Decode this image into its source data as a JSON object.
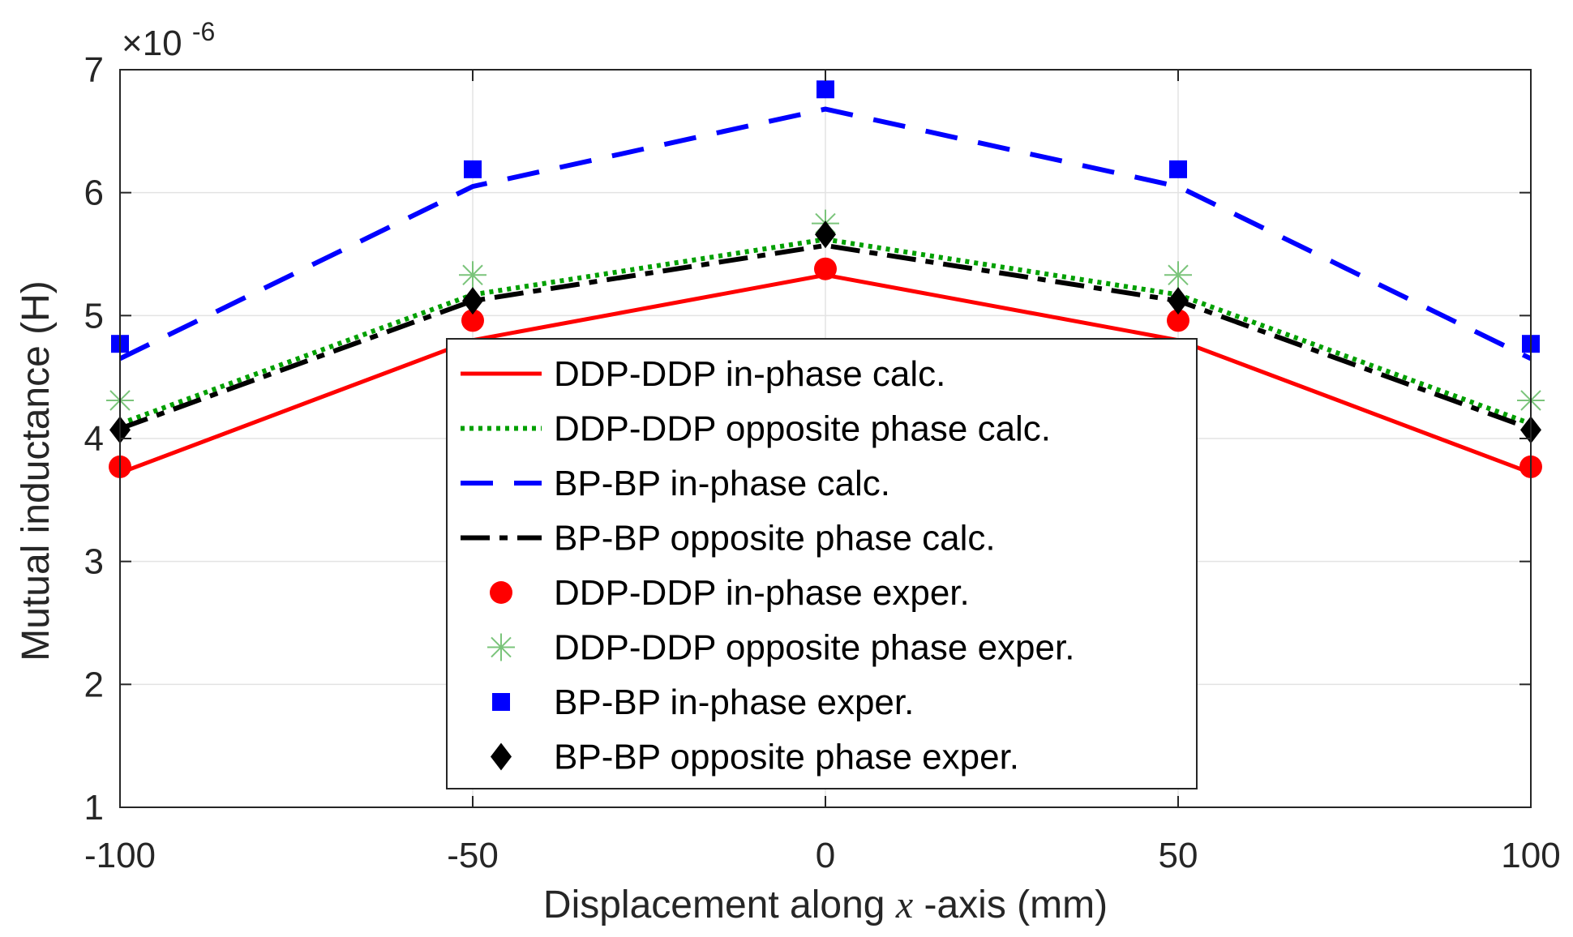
{
  "chart_data": {
    "type": "line",
    "title": "",
    "xlabel": "Displacement along x-axis (mm)",
    "xlabel_parts": {
      "before": "Displacement along ",
      "italic": "x",
      "after": "-axis (mm)"
    },
    "ylabel": "Mutual inductance (H)",
    "y_exponent_label": "×10-6",
    "y_exponent": {
      "base": "×10",
      "power": "-6"
    },
    "x": [
      -100,
      -50,
      0,
      50,
      100
    ],
    "xlim": [
      -100,
      100
    ],
    "ylim": [
      1,
      7
    ],
    "xticks": [
      -100,
      -50,
      0,
      50,
      100
    ],
    "yticks": [
      1,
      2,
      3,
      4,
      5,
      6,
      7
    ],
    "grid": true,
    "legend_position": "center",
    "series": [
      {
        "name": "DDP-DDP in-phase calc.",
        "kind": "line",
        "style": "solid",
        "color": "#ff0000",
        "values": [
          3.72,
          4.8,
          5.33,
          4.8,
          3.72
        ]
      },
      {
        "name": "DDP-DDP opposite phase calc.",
        "kind": "line",
        "style": "dotted",
        "color": "#00a000",
        "values": [
          4.12,
          5.17,
          5.62,
          5.17,
          4.12
        ]
      },
      {
        "name": "BP-BP in-phase calc.",
        "kind": "line",
        "style": "dashed",
        "color": "#0000ff",
        "values": [
          4.65,
          6.05,
          6.68,
          6.05,
          4.65
        ]
      },
      {
        "name": "BP-BP opposite phase calc.",
        "kind": "line",
        "style": "dashdot",
        "color": "#000000",
        "values": [
          4.08,
          5.12,
          5.57,
          5.12,
          4.08
        ]
      },
      {
        "name": "DDP-DDP in-phase exper.",
        "kind": "marker",
        "marker": "circle",
        "color": "#ff0000",
        "values": [
          3.77,
          4.96,
          5.38,
          4.96,
          3.77
        ]
      },
      {
        "name": "DDP-DDP opposite phase exper.",
        "kind": "marker",
        "marker": "asterisk",
        "color": "#7ac47a",
        "values": [
          4.31,
          5.33,
          5.75,
          5.33,
          4.31
        ]
      },
      {
        "name": "BP-BP in-phase exper.",
        "kind": "marker",
        "marker": "square",
        "color": "#0000ff",
        "values": [
          4.77,
          6.19,
          6.84,
          6.19,
          4.77
        ]
      },
      {
        "name": "BP-BP opposite phase exper.",
        "kind": "marker",
        "marker": "diamond",
        "color": "#000000",
        "values": [
          4.07,
          5.12,
          5.66,
          5.12,
          4.07
        ]
      }
    ]
  }
}
